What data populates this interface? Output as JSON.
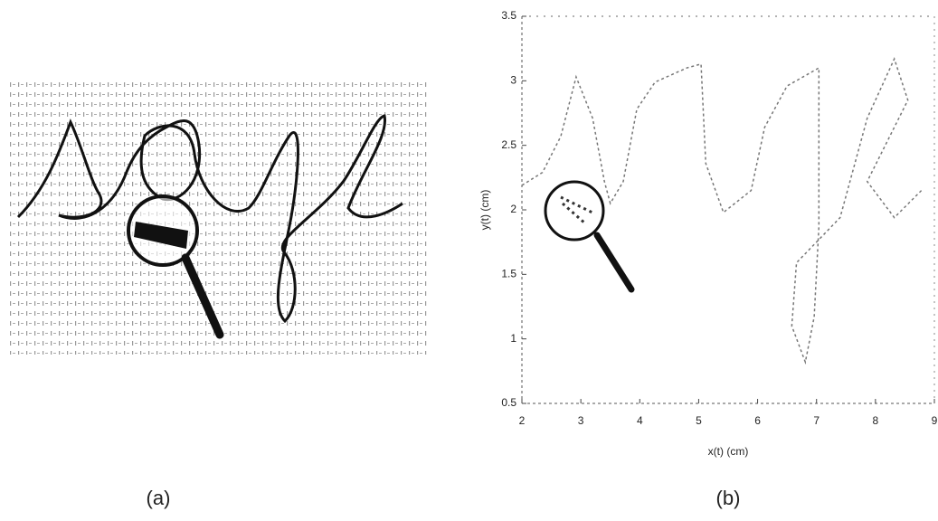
{
  "panels": {
    "a": "(a)",
    "b": "(b)"
  },
  "chart_data": {
    "type": "line",
    "xlabel": "x(t) (cm)",
    "ylabel": "y(t) (cm)",
    "xlim": [
      2,
      9
    ],
    "ylim": [
      0.5,
      3.5
    ],
    "xticks": [
      2,
      3,
      4,
      5,
      6,
      7,
      8,
      9
    ],
    "yticks": [
      0.5,
      1,
      1.5,
      2,
      2.5,
      3,
      3.5
    ],
    "color": "#777777",
    "x": [
      2,
      2.35,
      2.66,
      2.92,
      3.2,
      3.4,
      3.5,
      3.72,
      3.95,
      4.26,
      4.8,
      5.04,
      5.12,
      5.42,
      5.89,
      6.12,
      6.5,
      7.04,
      7.04,
      6.96,
      6.81,
      6.58,
      6.66,
      7.4,
      7.86,
      8.32,
      8.55,
      7.86,
      8.32,
      8.78
    ],
    "values": [
      2.19,
      2.29,
      2.57,
      3.03,
      2.71,
      2.22,
      2.05,
      2.22,
      2.78,
      2.99,
      3.1,
      3.13,
      2.36,
      1.98,
      2.15,
      2.64,
      2.96,
      3.1,
      1.87,
      1.17,
      0.82,
      1.1,
      1.59,
      1.94,
      2.71,
      3.17,
      2.85,
      2.22,
      1.94,
      2.15
    ]
  }
}
